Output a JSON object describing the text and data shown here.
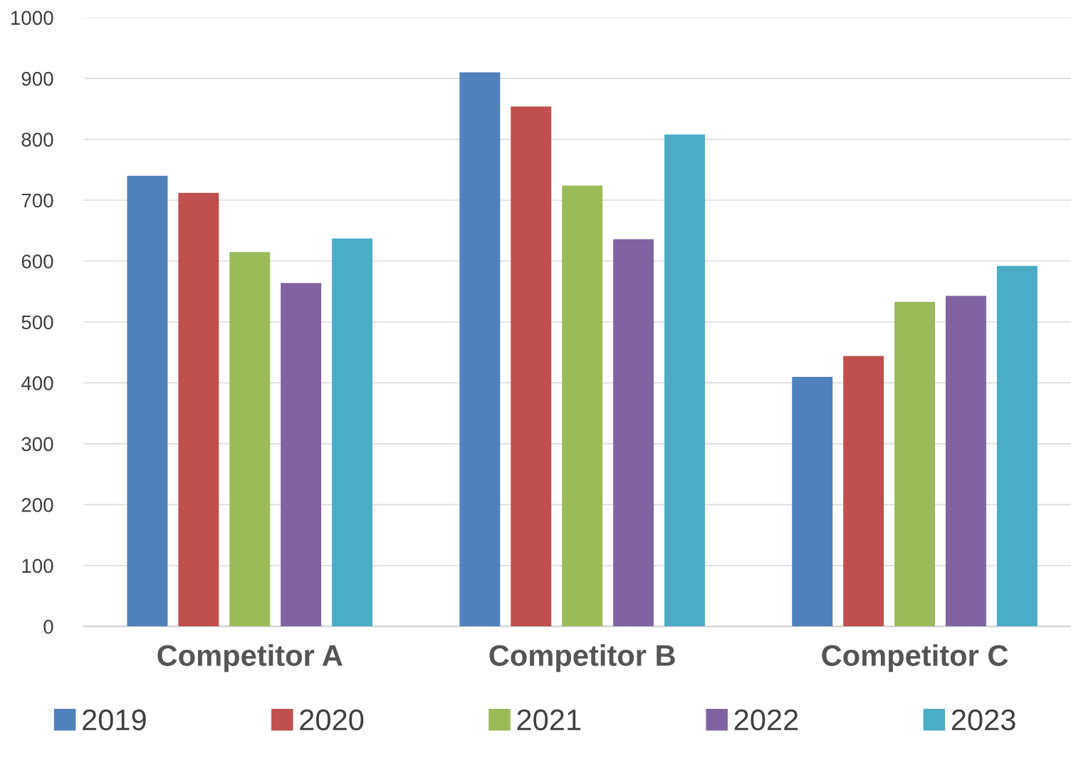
{
  "chart_data": {
    "type": "bar",
    "categories": [
      "Competitor A",
      "Competitor B",
      "Competitor C"
    ],
    "series": [
      {
        "name": "2019",
        "color": "#4f81bd",
        "values": [
          740,
          910,
          410
        ]
      },
      {
        "name": "2020",
        "color": "#c0504d",
        "values": [
          712,
          854,
          444
        ]
      },
      {
        "name": "2021",
        "color": "#9bbb59",
        "values": [
          615,
          724,
          533
        ]
      },
      {
        "name": "2022",
        "color": "#8064a2",
        "values": [
          564,
          636,
          543
        ]
      },
      {
        "name": "2023",
        "color": "#4bacc6",
        "values": [
          637,
          808,
          592
        ]
      }
    ],
    "ylim": [
      0,
      1000
    ],
    "yticks": [
      0,
      100,
      200,
      300,
      400,
      500,
      600,
      700,
      800,
      900,
      1000
    ],
    "grid": "y",
    "legend": "bottom"
  }
}
